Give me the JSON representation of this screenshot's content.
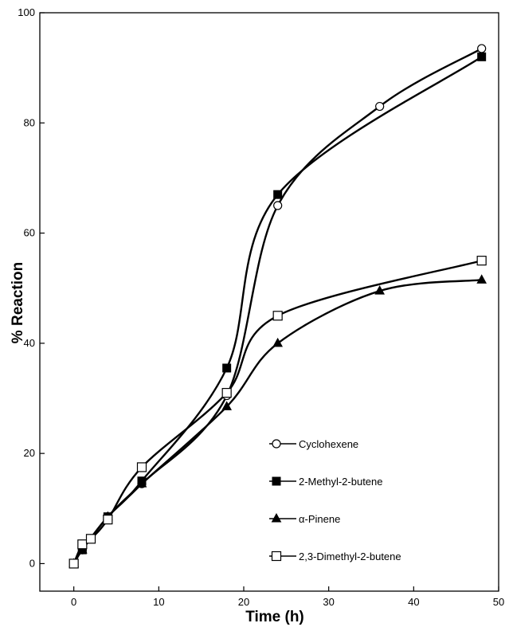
{
  "chart_data": {
    "type": "line",
    "xlabel": "Time (h)",
    "ylabel": "% Reaction",
    "xlim": [
      -4,
      50
    ],
    "ylim": [
      -5,
      100
    ],
    "xticks": [
      0,
      10,
      20,
      30,
      40,
      50
    ],
    "yticks": [
      0,
      20,
      40,
      60,
      80,
      100
    ],
    "grid": false,
    "legend_position": "bottom-right",
    "series": [
      {
        "name": "Cyclohexene",
        "marker": "open-circle",
        "color": "#000000",
        "x": [
          0,
          1,
          4,
          8,
          18,
          24,
          36,
          48
        ],
        "y": [
          0,
          2.5,
          8.5,
          14.5,
          30.5,
          65,
          83,
          93.5
        ]
      },
      {
        "name": "2-Methyl-2-butene",
        "marker": "filled-square",
        "color": "#000000",
        "x": [
          0,
          1,
          4,
          8,
          18,
          24,
          48
        ],
        "y": [
          0,
          2.5,
          8.5,
          15,
          35.5,
          67,
          92
        ]
      },
      {
        "name": "α-Pinene",
        "marker": "filled-triangle",
        "color": "#000000",
        "x": [
          0,
          1,
          4,
          8,
          18,
          24,
          36,
          48
        ],
        "y": [
          0,
          2.5,
          8.5,
          14.5,
          28.5,
          40,
          49.5,
          51.5
        ]
      },
      {
        "name": "2,3-Dimethyl-2-butene",
        "marker": "open-square",
        "color": "#000000",
        "x": [
          0,
          1,
          2,
          4,
          8,
          18,
          24,
          48
        ],
        "y": [
          0,
          3.5,
          4.5,
          8,
          17.5,
          31,
          45,
          55
        ]
      }
    ]
  }
}
